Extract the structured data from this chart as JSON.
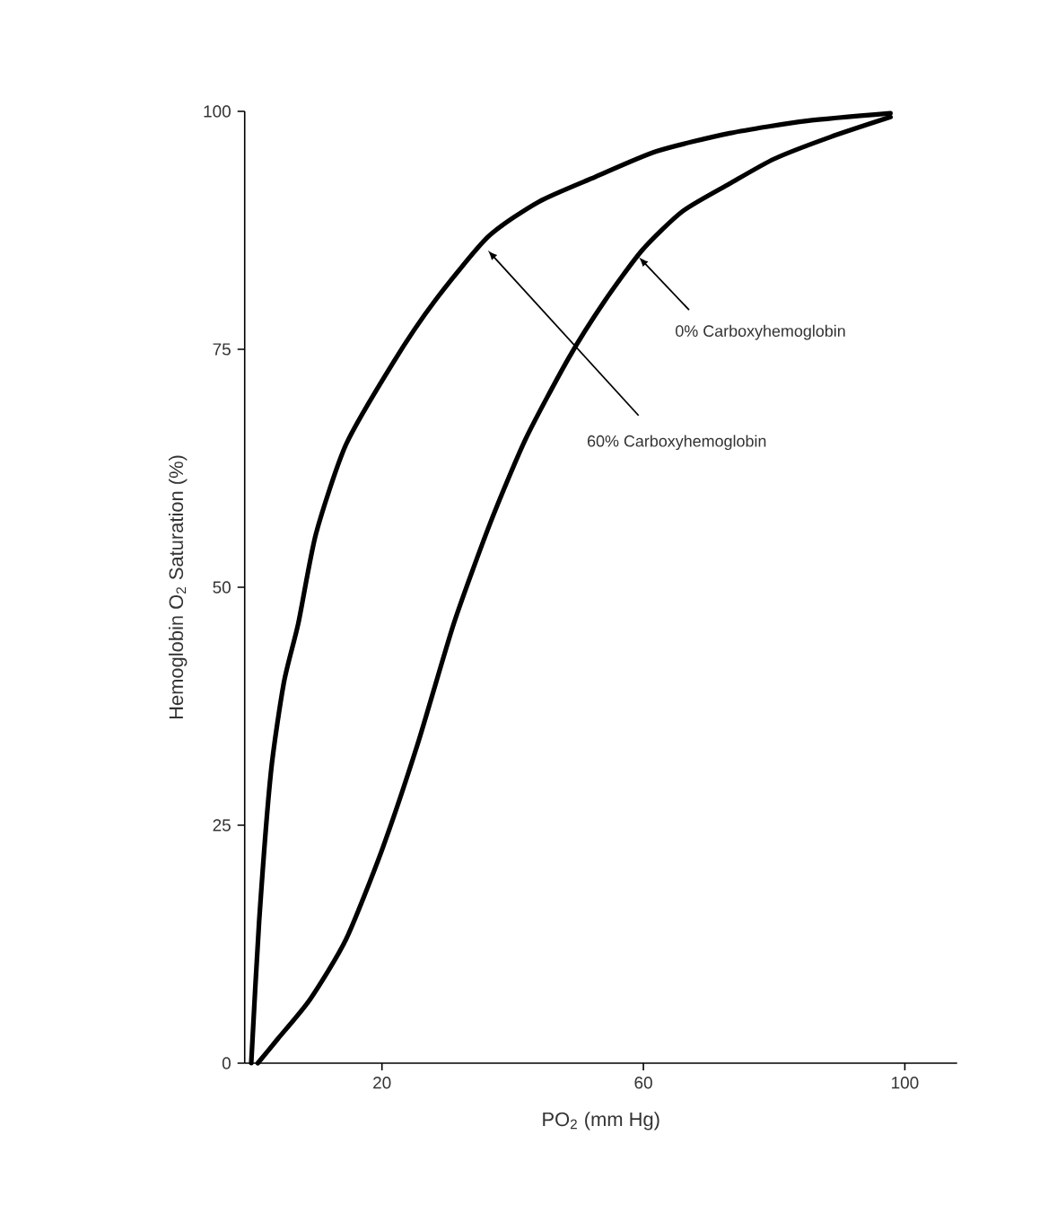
{
  "chart_data": {
    "type": "line",
    "xlabel": "PO$_{2}$ (mm Hg)",
    "ylabel": "Hemoglobin O$_{2}$ Saturation (%)",
    "xlim": [
      -1,
      108
    ],
    "ylim": [
      0,
      100
    ],
    "xticks": [
      20,
      60,
      100
    ],
    "yticks": [
      0,
      25,
      50,
      75,
      100
    ],
    "line_style": "solid",
    "series": [
      {
        "color": "#000000",
        "x": [
          0,
          1.2,
          3,
          5,
          7.2,
          9.9,
          14.5,
          21.8,
          28,
          36.2,
          44,
          52.6,
          62,
          73.2,
          85,
          97.8
        ],
        "values": [
          0,
          14.8,
          30.5,
          40,
          46.2,
          55.6,
          65,
          73.7,
          80,
          86.8,
          90.5,
          93.1,
          95.8,
          97.7,
          99,
          99.8
        ]
      },
      {
        "color": "#000000",
        "x": [
          1,
          4,
          9,
          14.5,
          20,
          25.5,
          31,
          36.6,
          42,
          48.5,
          54,
          59.8,
          66,
          73.2,
          80,
          88.6,
          97.8
        ],
        "values": [
          0,
          2.5,
          6.7,
          13,
          22.4,
          33.6,
          46.2,
          56.8,
          65.6,
          74,
          80,
          85.4,
          89.5,
          92.4,
          95,
          97.3,
          99.4
        ]
      }
    ],
    "annotations": [
      {
        "text": "0% Carboxyhemoglobin",
        "x": 59.3,
        "y": 84.7
      },
      {
        "text": "60% Carboxyhemoglobin",
        "x": 36.2,
        "y": 85.4
      }
    ]
  }
}
